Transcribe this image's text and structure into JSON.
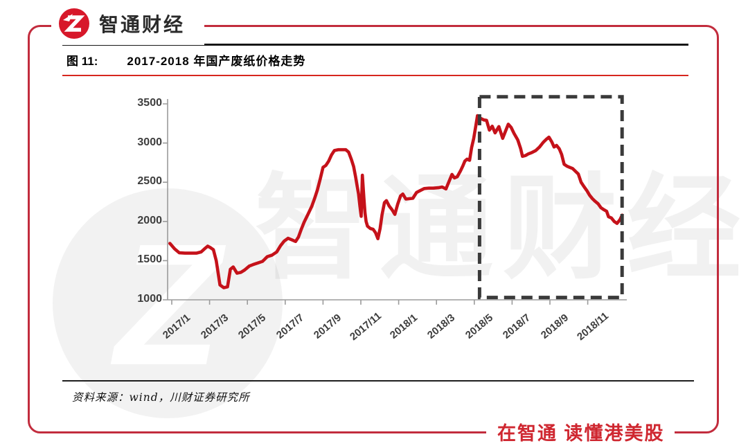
{
  "brand": {
    "logo_text": "智通财经",
    "logo_glyph": "Z",
    "slogan": "在智通  读懂港美股",
    "colors": {
      "logo_red": "#d7182a",
      "frame_red": "#c22c3d",
      "title_underline_red": "#d6261e",
      "slogan_red": "#cf2730",
      "line_red": "#c5121a",
      "axis_gray": "#9b9b9b",
      "tick_label_gray": "#3d3d3d",
      "highlight_dash": "#3a3a3a"
    }
  },
  "figure_header": {
    "label": "图 11:",
    "title": "2017-2018 年国产废纸价格走势"
  },
  "footer": {
    "source": "资料来源：wind，川财证券研究所"
  },
  "watermark": {
    "glyph": "Z",
    "text": "智通财经"
  },
  "chart_data": {
    "type": "line",
    "title": "2017-2018 年国产废纸价格走势",
    "x_unit": "months since 2017/1",
    "x_tick_labels": [
      "2017/1",
      "2017/3",
      "2017/5",
      "2017/7",
      "2017/9",
      "2017/11",
      "2018/1",
      "2018/3",
      "2018/5",
      "2018/7",
      "2018/9",
      "2018/11"
    ],
    "y_ticks": [
      1000,
      1500,
      2000,
      2500,
      3000,
      3500
    ],
    "ylim": [
      1000,
      3500
    ],
    "grid": false,
    "legend": null,
    "line_color": "#c5121a",
    "series": [
      {
        "name": "国产废纸价格",
        "points": [
          [
            -0.1,
            1720
          ],
          [
            0.15,
            1650
          ],
          [
            0.4,
            1600
          ],
          [
            0.7,
            1595
          ],
          [
            1.0,
            1595
          ],
          [
            1.3,
            1595
          ],
          [
            1.55,
            1610
          ],
          [
            1.75,
            1655
          ],
          [
            1.9,
            1685
          ],
          [
            2.05,
            1665
          ],
          [
            2.2,
            1640
          ],
          [
            2.35,
            1500
          ],
          [
            2.55,
            1190
          ],
          [
            2.75,
            1155
          ],
          [
            2.95,
            1165
          ],
          [
            3.1,
            1390
          ],
          [
            3.25,
            1420
          ],
          [
            3.45,
            1340
          ],
          [
            3.65,
            1350
          ],
          [
            3.85,
            1380
          ],
          [
            4.1,
            1430
          ],
          [
            4.3,
            1450
          ],
          [
            4.55,
            1470
          ],
          [
            4.8,
            1490
          ],
          [
            5.05,
            1550
          ],
          [
            5.3,
            1570
          ],
          [
            5.55,
            1610
          ],
          [
            5.75,
            1690
          ],
          [
            5.95,
            1750
          ],
          [
            6.15,
            1785
          ],
          [
            6.35,
            1765
          ],
          [
            6.55,
            1745
          ],
          [
            6.7,
            1800
          ],
          [
            6.85,
            1900
          ],
          [
            7.0,
            1990
          ],
          [
            7.2,
            2090
          ],
          [
            7.4,
            2190
          ],
          [
            7.55,
            2290
          ],
          [
            7.7,
            2400
          ],
          [
            7.85,
            2540
          ],
          [
            8.0,
            2690
          ],
          [
            8.15,
            2715
          ],
          [
            8.3,
            2770
          ],
          [
            8.45,
            2850
          ],
          [
            8.6,
            2905
          ],
          [
            8.8,
            2915
          ],
          [
            9.0,
            2915
          ],
          [
            9.2,
            2915
          ],
          [
            9.35,
            2885
          ],
          [
            9.5,
            2790
          ],
          [
            9.62,
            2700
          ],
          [
            9.72,
            2570
          ],
          [
            9.8,
            2460
          ],
          [
            9.88,
            2350
          ],
          [
            9.95,
            2200
          ],
          [
            10.02,
            2065
          ],
          [
            10.08,
            2590
          ],
          [
            10.16,
            2300
          ],
          [
            10.22,
            2110
          ],
          [
            10.28,
            2000
          ],
          [
            10.35,
            1940
          ],
          [
            10.5,
            1910
          ],
          [
            10.65,
            1900
          ],
          [
            10.78,
            1855
          ],
          [
            10.9,
            1780
          ],
          [
            11.02,
            1910
          ],
          [
            11.12,
            2085
          ],
          [
            11.25,
            2240
          ],
          [
            11.35,
            2265
          ],
          [
            11.5,
            2195
          ],
          [
            11.65,
            2150
          ],
          [
            11.8,
            2090
          ],
          [
            11.95,
            2220
          ],
          [
            12.1,
            2325
          ],
          [
            12.22,
            2350
          ],
          [
            12.38,
            2285
          ],
          [
            12.55,
            2290
          ],
          [
            12.75,
            2295
          ],
          [
            12.95,
            2370
          ],
          [
            13.15,
            2395
          ],
          [
            13.35,
            2420
          ],
          [
            13.6,
            2425
          ],
          [
            13.85,
            2425
          ],
          [
            14.1,
            2430
          ],
          [
            14.3,
            2440
          ],
          [
            14.5,
            2415
          ],
          [
            14.7,
            2530
          ],
          [
            14.82,
            2600
          ],
          [
            14.95,
            2555
          ],
          [
            15.1,
            2570
          ],
          [
            15.27,
            2645
          ],
          [
            15.4,
            2710
          ],
          [
            15.5,
            2770
          ],
          [
            15.62,
            2795
          ],
          [
            15.75,
            2780
          ],
          [
            15.86,
            2945
          ],
          [
            15.97,
            3060
          ],
          [
            16.08,
            3220
          ],
          [
            16.17,
            3350
          ],
          [
            16.3,
            3320
          ],
          [
            16.5,
            3295
          ],
          [
            16.65,
            3290
          ],
          [
            16.8,
            3165
          ],
          [
            16.95,
            3215
          ],
          [
            17.1,
            3130
          ],
          [
            17.3,
            3210
          ],
          [
            17.5,
            3060
          ],
          [
            17.65,
            3150
          ],
          [
            17.8,
            3240
          ],
          [
            17.95,
            3200
          ],
          [
            18.1,
            3125
          ],
          [
            18.3,
            3040
          ],
          [
            18.45,
            2930
          ],
          [
            18.55,
            2830
          ],
          [
            18.7,
            2840
          ],
          [
            18.85,
            2860
          ],
          [
            19.05,
            2880
          ],
          [
            19.25,
            2905
          ],
          [
            19.45,
            2950
          ],
          [
            19.65,
            3010
          ],
          [
            19.82,
            3050
          ],
          [
            19.95,
            3075
          ],
          [
            20.1,
            3015
          ],
          [
            20.22,
            2950
          ],
          [
            20.35,
            2970
          ],
          [
            20.5,
            2925
          ],
          [
            20.62,
            2855
          ],
          [
            20.75,
            2730
          ],
          [
            20.9,
            2705
          ],
          [
            21.05,
            2690
          ],
          [
            21.2,
            2675
          ],
          [
            21.35,
            2640
          ],
          [
            21.5,
            2605
          ],
          [
            21.65,
            2500
          ],
          [
            21.8,
            2445
          ],
          [
            21.95,
            2395
          ],
          [
            22.1,
            2335
          ],
          [
            22.25,
            2290
          ],
          [
            22.4,
            2255
          ],
          [
            22.55,
            2225
          ],
          [
            22.7,
            2175
          ],
          [
            22.85,
            2150
          ],
          [
            23.0,
            2130
          ],
          [
            23.1,
            2060
          ],
          [
            23.25,
            2045
          ],
          [
            23.4,
            2000
          ],
          [
            23.55,
            1975
          ],
          [
            23.7,
            2020
          ],
          [
            23.82,
            2080
          ]
        ]
      }
    ],
    "highlight_box": {
      "style": "dashed",
      "color": "#3a3a3a",
      "x_from_month": 16.28,
      "x_to_month": 23.82,
      "y_from": 1030,
      "y_to": 3590
    }
  }
}
